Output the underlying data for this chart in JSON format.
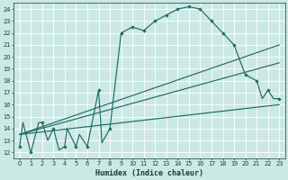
{
  "xlabel": "Humidex (Indice chaleur)",
  "bg_color": "#cce8e5",
  "grid_color": "#ffffff",
  "line_color": "#1e6b63",
  "xlim": [
    -0.5,
    23.5
  ],
  "ylim": [
    11.5,
    24.5
  ],
  "xticks": [
    0,
    1,
    2,
    3,
    4,
    5,
    6,
    7,
    8,
    9,
    10,
    11,
    12,
    13,
    14,
    15,
    16,
    17,
    18,
    19,
    20,
    21,
    22,
    23
  ],
  "yticks": [
    12,
    13,
    14,
    15,
    16,
    17,
    18,
    19,
    20,
    21,
    22,
    23,
    24
  ],
  "series1_x": [
    0,
    0.3,
    1,
    1.7,
    2,
    2.5,
    3,
    3.5,
    4,
    4.2,
    5,
    5.3,
    6,
    7,
    7.3,
    8,
    9,
    10,
    11,
    12,
    13,
    14,
    15,
    16,
    17,
    18,
    19,
    20,
    21,
    21.5,
    22,
    22.5,
    23
  ],
  "series1_y": [
    12.5,
    14.5,
    12.0,
    14.5,
    14.5,
    13.0,
    14.0,
    12.2,
    12.5,
    14.0,
    12.5,
    13.5,
    12.5,
    17.2,
    12.8,
    14.0,
    22.0,
    22.5,
    22.2,
    23.0,
    23.5,
    24.0,
    24.2,
    24.0,
    23.0,
    22.0,
    21.0,
    18.5,
    18.0,
    16.5,
    17.2,
    16.5,
    16.5
  ],
  "series1_markers_x": [
    0,
    1,
    2,
    3,
    4,
    5,
    6,
    7,
    8,
    9,
    10,
    11,
    12,
    13,
    14,
    15,
    16,
    17,
    18,
    19,
    20,
    21,
    22,
    23
  ],
  "series1_markers_y": [
    12.5,
    12.0,
    14.5,
    14.0,
    12.5,
    12.5,
    12.5,
    17.2,
    14.0,
    22.0,
    22.5,
    22.2,
    23.0,
    23.5,
    24.0,
    24.2,
    24.0,
    23.0,
    22.0,
    21.0,
    18.5,
    18.0,
    17.2,
    16.5
  ],
  "series2_x": [
    0,
    23
  ],
  "series2_y": [
    13.5,
    21.0
  ],
  "series3_x": [
    0,
    23
  ],
  "series3_y": [
    13.5,
    19.5
  ],
  "series4_x": [
    0,
    23
  ],
  "series4_y": [
    13.5,
    16.0
  ]
}
